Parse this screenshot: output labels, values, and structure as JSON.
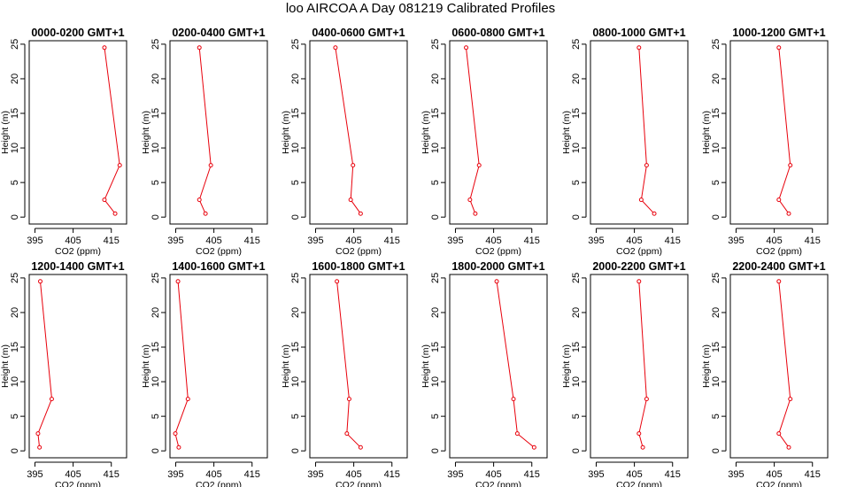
{
  "title": "loo AIRCOA A  Day 081219  Calibrated Profiles",
  "colors": {
    "series": "#e8000b",
    "axis": "#000000"
  },
  "chart_data": {
    "type": "line",
    "xlabel": "CO2 (ppm)",
    "ylabel": "Height (m)",
    "xlim": [
      393.5,
      419
    ],
    "ylim": [
      -1,
      25.5
    ],
    "xticks": [
      "395",
      "405",
      "415"
    ],
    "yticks": [
      "0",
      "5",
      "10",
      "15",
      "20",
      "25"
    ],
    "grid": false,
    "panels": [
      {
        "title": "0000-0200 GMT+1",
        "points": [
          [
            416,
            0.5
          ],
          [
            413.2,
            2.5
          ],
          [
            417.2,
            7.5
          ],
          [
            413.2,
            24.5
          ]
        ]
      },
      {
        "title": "0200-0400 GMT+1",
        "points": [
          [
            402.8,
            0.5
          ],
          [
            401.2,
            2.5
          ],
          [
            404.2,
            7.5
          ],
          [
            401.2,
            24.5
          ]
        ]
      },
      {
        "title": "0400-0600 GMT+1",
        "points": [
          [
            406.8,
            0.5
          ],
          [
            404.2,
            2.5
          ],
          [
            404.8,
            7.5
          ],
          [
            400.2,
            24.5
          ]
        ]
      },
      {
        "title": "0600-0800 GMT+1",
        "points": [
          [
            400.2,
            0.5
          ],
          [
            398.8,
            2.5
          ],
          [
            401.2,
            7.5
          ],
          [
            397.8,
            24.5
          ]
        ]
      },
      {
        "title": "0800-1000 GMT+1",
        "points": [
          [
            410.2,
            0.5
          ],
          [
            406.8,
            2.5
          ],
          [
            408.2,
            7.5
          ],
          [
            406.2,
            24.5
          ]
        ]
      },
      {
        "title": "1000-1200 GMT+1",
        "points": [
          [
            408.8,
            0.5
          ],
          [
            406.2,
            2.5
          ],
          [
            409.2,
            7.5
          ],
          [
            406.2,
            24.5
          ]
        ]
      },
      {
        "title": "1200-1400 GMT+1",
        "points": [
          [
            396.2,
            0.5
          ],
          [
            395.8,
            2.5
          ],
          [
            399.4,
            7.5
          ],
          [
            396.4,
            24.5
          ]
        ]
      },
      {
        "title": "1400-1600 GMT+1",
        "points": [
          [
            395.8,
            0.5
          ],
          [
            394.9,
            2.5
          ],
          [
            398.2,
            7.5
          ],
          [
            395.6,
            24.5
          ]
        ]
      },
      {
        "title": "1600-1800 GMT+1",
        "points": [
          [
            406.8,
            0.5
          ],
          [
            403.2,
            2.5
          ],
          [
            403.8,
            7.5
          ],
          [
            400.6,
            24.5
          ]
        ]
      },
      {
        "title": "1800-2000 GMT+1",
        "points": [
          [
            415.6,
            0.5
          ],
          [
            411.2,
            2.5
          ],
          [
            410.2,
            7.5
          ],
          [
            405.8,
            24.5
          ]
        ]
      },
      {
        "title": "2000-2200 GMT+1",
        "points": [
          [
            407.2,
            0.5
          ],
          [
            406.2,
            2.5
          ],
          [
            408.2,
            7.5
          ],
          [
            406.2,
            24.5
          ]
        ]
      },
      {
        "title": "2200-2400 GMT+1",
        "points": [
          [
            408.8,
            0.5
          ],
          [
            406.2,
            2.5
          ],
          [
            409.2,
            7.5
          ],
          [
            406.2,
            24.5
          ]
        ]
      }
    ]
  }
}
